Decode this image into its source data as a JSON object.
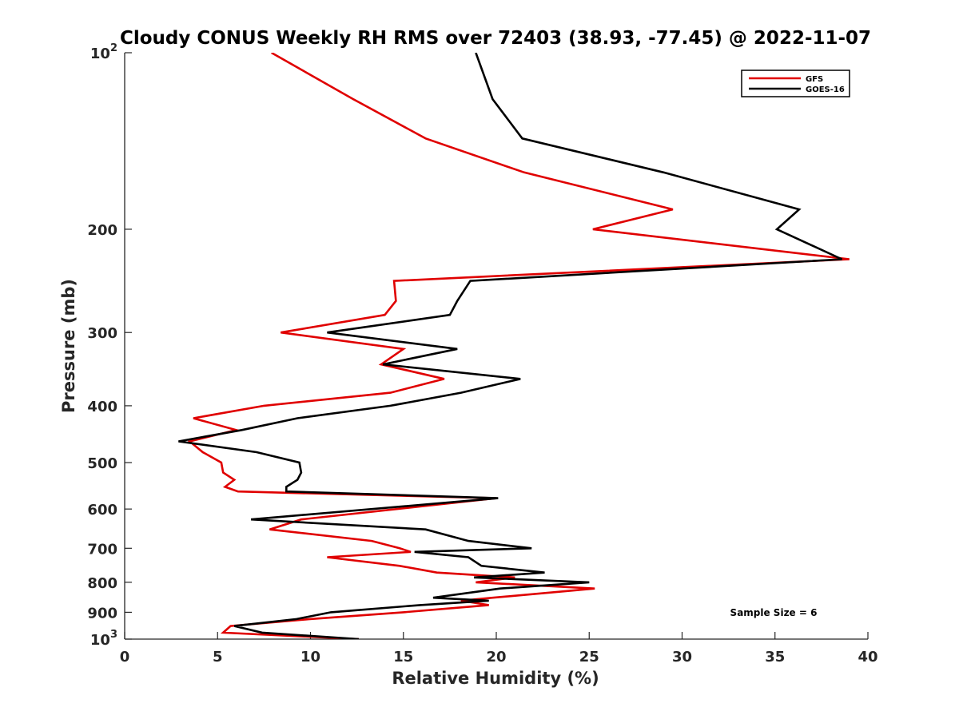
{
  "chart_data": {
    "type": "line",
    "title": "Cloudy CONUS Weekly RH RMS over 72403 (38.93, -77.45) @ 2022-11-07",
    "xlabel": "Relative Humidity (%)",
    "ylabel": "Pressure (mb)",
    "xlim": [
      0,
      40
    ],
    "ylim": [
      100,
      1000
    ],
    "y_scale": "log",
    "y_reversed": true,
    "x_ticks": [
      "0",
      "5",
      "10",
      "15",
      "20",
      "25",
      "30",
      "35",
      "40"
    ],
    "y_ticks": [
      {
        "value": 100,
        "base": "10",
        "exp": "2"
      },
      {
        "value": 200,
        "label": "200"
      },
      {
        "value": 300,
        "label": "300"
      },
      {
        "value": 400,
        "label": "400"
      },
      {
        "value": 500,
        "label": "500"
      },
      {
        "value": 600,
        "label": "600"
      },
      {
        "value": 700,
        "label": "700"
      },
      {
        "value": 800,
        "label": "800"
      },
      {
        "value": 900,
        "label": "900"
      },
      {
        "value": 1000,
        "base": "10",
        "exp": "3"
      }
    ],
    "grid": false,
    "legend_position": "top-right",
    "annotation": "Sample Size = 6",
    "series": [
      {
        "name": "GFS",
        "color": "#e00000",
        "points": [
          [
            7.9,
            100
          ],
          [
            12.3,
            120
          ],
          [
            16.2,
            140
          ],
          [
            21.5,
            160
          ],
          [
            29.5,
            185
          ],
          [
            25.2,
            200
          ],
          [
            39.0,
            225
          ],
          [
            14.5,
            245
          ],
          [
            14.6,
            265
          ],
          [
            14.0,
            280
          ],
          [
            8.4,
            300
          ],
          [
            15.0,
            320
          ],
          [
            13.8,
            340
          ],
          [
            17.2,
            360
          ],
          [
            14.3,
            380
          ],
          [
            7.5,
            400
          ],
          [
            3.7,
            420
          ],
          [
            6.0,
            440
          ],
          [
            3.5,
            460
          ],
          [
            4.2,
            480
          ],
          [
            5.2,
            500
          ],
          [
            5.3,
            520
          ],
          [
            5.9,
            535
          ],
          [
            5.4,
            550
          ],
          [
            6.1,
            560
          ],
          [
            20.0,
            575
          ],
          [
            9.5,
            625
          ],
          [
            7.8,
            650
          ],
          [
            13.3,
            680
          ],
          [
            14.8,
            700
          ],
          [
            15.4,
            710
          ],
          [
            10.9,
            725
          ],
          [
            14.8,
            750
          ],
          [
            16.8,
            770
          ],
          [
            21.0,
            785
          ],
          [
            18.9,
            800
          ],
          [
            25.3,
            820
          ],
          [
            19.8,
            850
          ],
          [
            18.1,
            860
          ],
          [
            19.6,
            875
          ],
          [
            15.0,
            900
          ],
          [
            9.9,
            925
          ],
          [
            5.7,
            950
          ],
          [
            5.3,
            975
          ],
          [
            12.6,
            1000
          ]
        ]
      },
      {
        "name": "GOES-16",
        "color": "#000000",
        "points": [
          [
            18.9,
            100
          ],
          [
            19.8,
            120
          ],
          [
            21.4,
            140
          ],
          [
            29.0,
            160
          ],
          [
            36.3,
            185
          ],
          [
            35.1,
            200
          ],
          [
            38.6,
            225
          ],
          [
            18.6,
            245
          ],
          [
            17.9,
            265
          ],
          [
            17.5,
            280
          ],
          [
            10.9,
            300
          ],
          [
            17.9,
            320
          ],
          [
            13.9,
            340
          ],
          [
            21.3,
            360
          ],
          [
            18.1,
            380
          ],
          [
            14.3,
            400
          ],
          [
            9.3,
            420
          ],
          [
            6.3,
            440
          ],
          [
            2.9,
            460
          ],
          [
            7.1,
            480
          ],
          [
            9.4,
            500
          ],
          [
            9.5,
            520
          ],
          [
            9.3,
            535
          ],
          [
            8.7,
            550
          ],
          [
            8.7,
            560
          ],
          [
            20.1,
            575
          ],
          [
            6.8,
            625
          ],
          [
            16.2,
            650
          ],
          [
            18.5,
            680
          ],
          [
            21.9,
            700
          ],
          [
            15.6,
            710
          ],
          [
            18.5,
            725
          ],
          [
            19.2,
            750
          ],
          [
            22.6,
            770
          ],
          [
            18.8,
            785
          ],
          [
            25.0,
            800
          ],
          [
            20.2,
            820
          ],
          [
            16.6,
            850
          ],
          [
            19.6,
            860
          ],
          [
            15.9,
            875
          ],
          [
            11.1,
            900
          ],
          [
            9.2,
            925
          ],
          [
            5.9,
            950
          ],
          [
            7.4,
            975
          ],
          [
            12.6,
            1000
          ]
        ]
      }
    ]
  }
}
